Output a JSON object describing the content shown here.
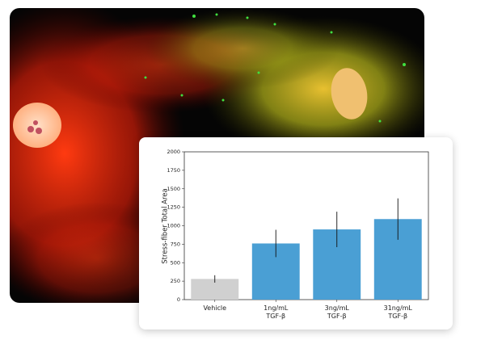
{
  "chart_data": {
    "type": "bar",
    "y_label": "Stress-fiber Total Area",
    "categories": [
      "Vehicle",
      "1ng/mL\nTGF-β",
      "3ng/mL\nTGF-β",
      "31ng/mL\nTGF-β"
    ],
    "values": [
      280,
      760,
      950,
      1090
    ],
    "errors": [
      50,
      185,
      240,
      280
    ],
    "colors": [
      "#d0d0d0",
      "#4a9fd4",
      "#4a9fd4",
      "#4a9fd4"
    ],
    "ylim": [
      0,
      2000
    ],
    "yticks": [
      0,
      250,
      500,
      750,
      1000,
      1250,
      1500,
      1750,
      2000
    ]
  }
}
